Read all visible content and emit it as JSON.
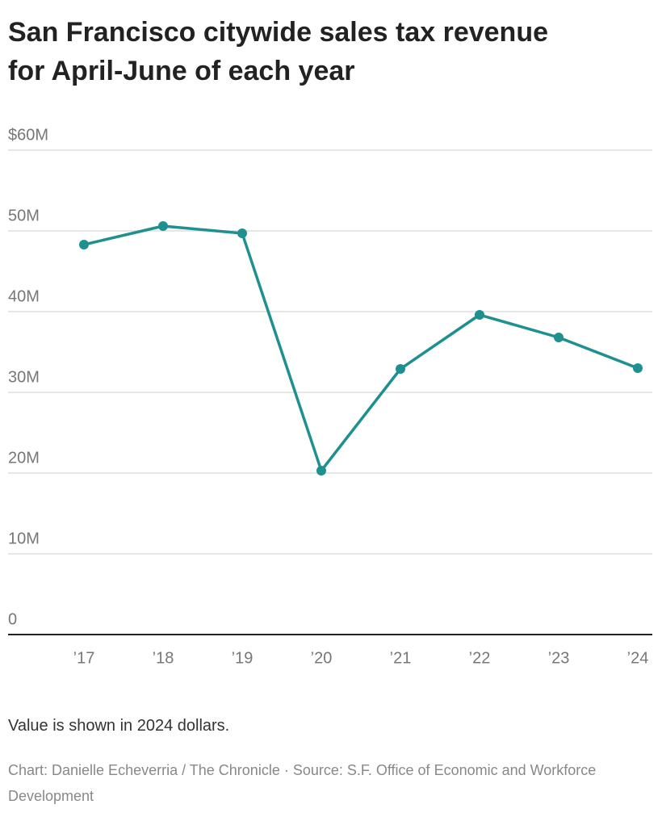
{
  "chart_data": {
    "type": "line",
    "title": "San Francisco citywide sales tax revenue for April-June of each year",
    "categories": [
      "’17",
      "’18",
      "’19",
      "’20",
      "’21",
      "’22",
      "’23",
      "’24"
    ],
    "values": [
      48.3,
      50.6,
      49.7,
      20.3,
      32.9,
      39.6,
      36.8,
      33.0
    ],
    "color": "#1f9090",
    "ylim": [
      0,
      60
    ],
    "yticks": [
      0,
      {
        "value": 10,
        "label": "10M"
      },
      {
        "value": 20,
        "label": "20M"
      },
      {
        "value": 30,
        "label": "30M"
      },
      {
        "value": 40,
        "label": "40M"
      },
      {
        "value": 50,
        "label": "50M"
      },
      {
        "value": 60,
        "label": "$60M"
      }
    ],
    "grid": true,
    "note": "Value is shown in 2024 dollars.",
    "credit": "Chart: Danielle Echeverria / The Chronicle · Source: S.F. Office of Economic and Workforce Development"
  }
}
